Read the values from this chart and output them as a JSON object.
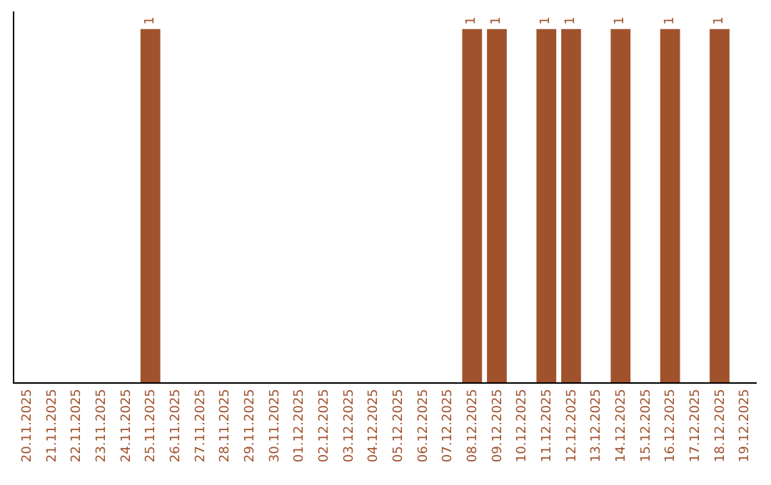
{
  "chart_data": {
    "type": "bar",
    "categories": [
      "20.11.2025",
      "21.11.2025",
      "22.11.2025",
      "23.11.2025",
      "24.11.2025",
      "25.11.2025",
      "26.11.2025",
      "27.11.2025",
      "28.11.2025",
      "29.11.2025",
      "30.11.2025",
      "01.12.2025",
      "02.12.2025",
      "03.12.2025",
      "04.12.2025",
      "05.12.2025",
      "06.12.2025",
      "07.12.2025",
      "08.12.2025",
      "09.12.2025",
      "10.12.2025",
      "11.12.2025",
      "12.12.2025",
      "13.12.2025",
      "14.12.2025",
      "15.12.2025",
      "16.12.2025",
      "17.12.2025",
      "18.12.2025",
      "19.12.2025"
    ],
    "values": [
      0,
      0,
      0,
      0,
      0,
      1,
      0,
      0,
      0,
      0,
      0,
      0,
      0,
      0,
      0,
      0,
      0,
      0,
      1,
      1,
      0,
      1,
      1,
      0,
      1,
      0,
      1,
      0,
      1,
      0
    ],
    "value_labels": [
      null,
      null,
      null,
      null,
      null,
      "1",
      null,
      null,
      null,
      null,
      null,
      null,
      null,
      null,
      null,
      null,
      null,
      null,
      "1",
      "1",
      null,
      "1",
      "1",
      null,
      "1",
      null,
      "1",
      null,
      "1",
      null
    ],
    "color": "#a0522d",
    "ylim": [
      0,
      1.05
    ],
    "tick_labels": "x"
  }
}
